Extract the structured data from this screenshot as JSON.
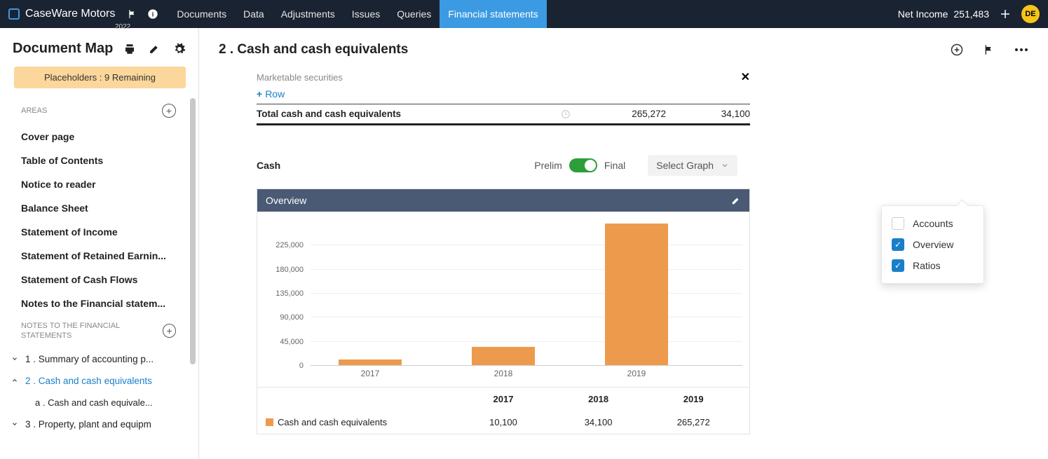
{
  "brand": {
    "name": "CaseWare Motors",
    "year": "2022"
  },
  "topnav": [
    "Documents",
    "Data",
    "Adjustments",
    "Issues",
    "Queries",
    "Financial statements"
  ],
  "topnav_active": "Financial statements",
  "net_income": {
    "label": "Net Income",
    "value": "251,483"
  },
  "avatar": "DE",
  "doc_map": {
    "title": "Document Map",
    "placeholders": "Placeholders : 9 Remaining",
    "areas_label": "AREAS",
    "areas": [
      "Cover page",
      "Table of Contents",
      "Notice to reader",
      "Balance Sheet",
      "Statement of Income",
      "Statement of Retained Earnin...",
      "Statement of Cash Flows",
      "Notes to the Financial statem..."
    ],
    "notes_label": "NOTES TO THE FINANCIAL STATEMENTS",
    "notes": [
      {
        "label": "1 .  Summary of accounting p...",
        "expanded": false
      },
      {
        "label": "2 .  Cash and cash equivalents",
        "expanded": true,
        "active": true,
        "children": [
          "a .  Cash and cash equivale..."
        ]
      },
      {
        "label": "3 .  Property, plant and equipm",
        "expanded": false
      }
    ]
  },
  "page": {
    "title": "2 . Cash and cash equivalents",
    "securities": "Marketable securities",
    "add_row": "Row",
    "totals": {
      "label": "Total cash and cash equivalents",
      "v1": "265,272",
      "v2": "34,100"
    },
    "cash": {
      "label": "Cash",
      "prelim": "Prelim",
      "final": "Final",
      "select_graph": "Select Graph"
    },
    "chart": {
      "head": "Overview",
      "type": "bar",
      "yticks": [
        0,
        45000,
        90000,
        135000,
        180000,
        225000
      ],
      "ytick_labels": [
        "0",
        "45,000",
        "90,000",
        "135,000",
        "180,000",
        "225,000"
      ],
      "ymax": 270000,
      "categories": [
        "2017",
        "2018",
        "2019"
      ],
      "values": [
        10100,
        34100,
        265272
      ],
      "bar_color": "#ee9a4d",
      "head_bg": "#4a5a74",
      "grid_color": "#eeeeee",
      "series_label": "Cash and cash equivalents",
      "table_values": [
        "10,100",
        "34,100",
        "265,272"
      ]
    },
    "dropdown": [
      {
        "label": "Accounts",
        "checked": false
      },
      {
        "label": "Overview",
        "checked": true
      },
      {
        "label": "Ratios",
        "checked": true
      }
    ]
  }
}
